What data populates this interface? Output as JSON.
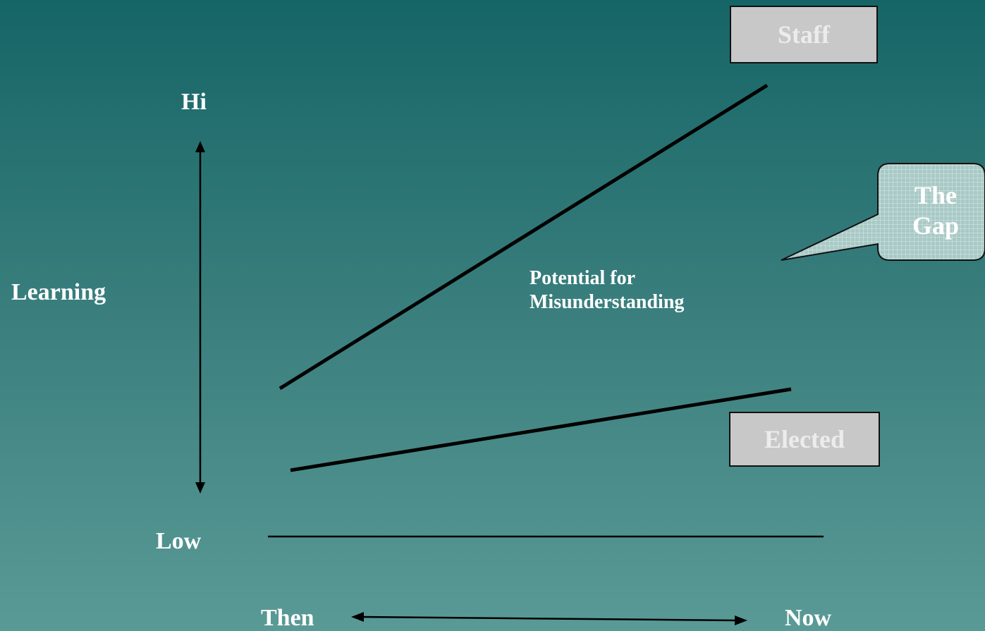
{
  "axis": {
    "hi_label": "Hi",
    "low_label": "Low",
    "learning_label": "Learning",
    "then_label": "Then",
    "now_label": "Now"
  },
  "boxes": {
    "staff_label": "Staff",
    "elected_label": "Elected"
  },
  "callout": {
    "line1": "The",
    "line2": "Gap"
  },
  "annotation": {
    "line1": "Potential for",
    "line2": "Misunderstanding"
  },
  "colors": {
    "background_top": "#166566",
    "background_bottom": "#5a9a96",
    "box_fill": "#c8c8c8",
    "callout_fill": "#a9c9c6",
    "lines": "#000000"
  }
}
